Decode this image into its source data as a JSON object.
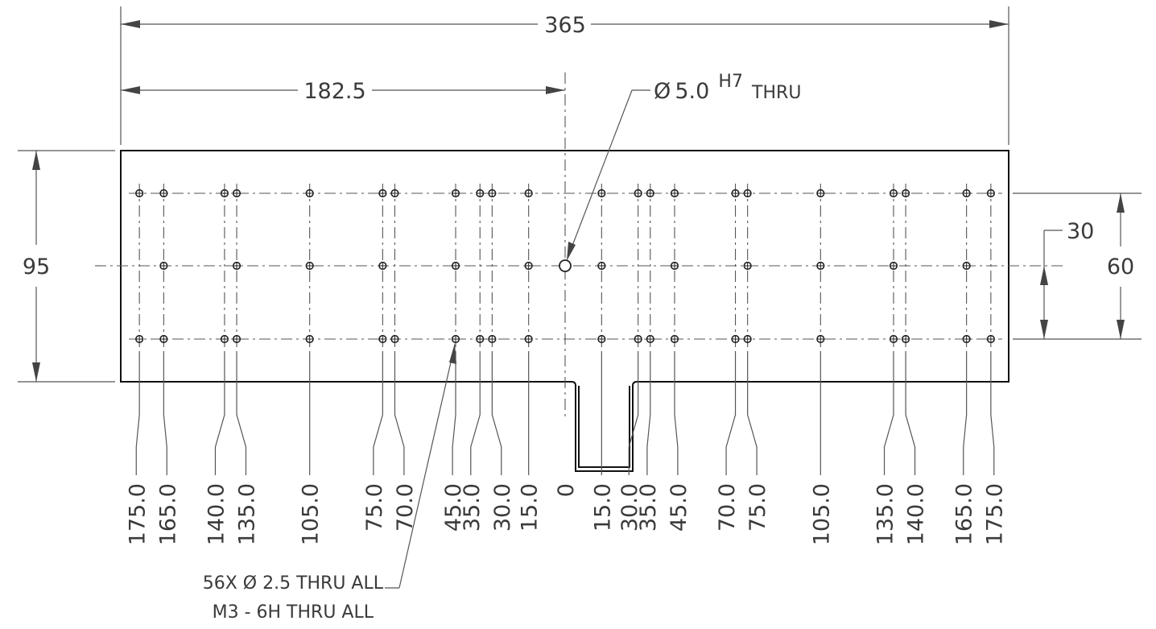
{
  "dimensions": {
    "overall_width": "365",
    "half_width": "182.5",
    "overall_height": "95",
    "row_pitch": "30",
    "outer_rows": "60"
  },
  "callouts": {
    "center_hole": {
      "prefix": "Ø",
      "size": "5.0",
      "fit": "H7",
      "suffix": "THRU"
    },
    "hole_pattern": {
      "line1": "56X Ø  2.5 THRU ALL",
      "line2": "M3 - 6H THRU ALL"
    }
  },
  "ordinates": {
    "left": [
      "175.0",
      "165.0",
      "140.0",
      "135.0",
      "105.0",
      "75.0",
      "70.0",
      "45.0",
      "35.0",
      "30.0",
      "15.0"
    ],
    "zero": "0",
    "right": [
      "15.0",
      "30.0",
      "35.0",
      "45.0",
      "70.0",
      "75.0",
      "105.0",
      "135.0",
      "140.0",
      "165.0",
      "175.0"
    ]
  },
  "holes": {
    "outer_row_offsets": [
      175,
      165,
      140,
      135,
      105,
      75,
      70,
      45,
      35,
      30,
      15
    ],
    "middle_row_offsets": [
      165,
      135,
      105,
      75,
      45,
      15
    ]
  }
}
